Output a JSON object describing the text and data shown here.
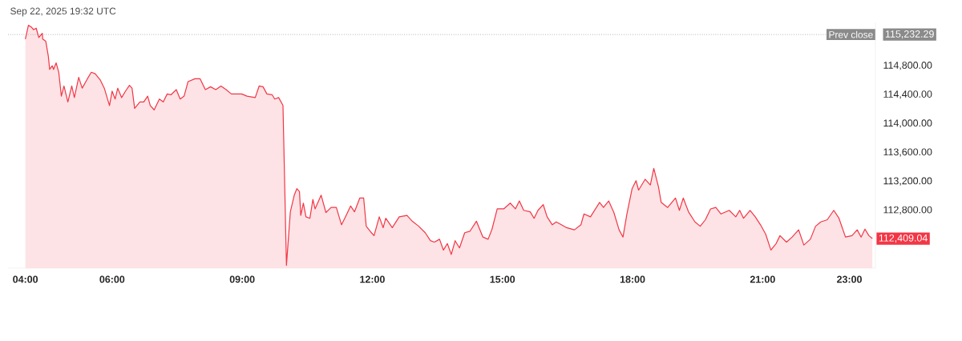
{
  "chart_data": {
    "type": "area",
    "title": "Sep 22, 2025 19:32 UTC",
    "color": "#f23645",
    "x": [
      4.0,
      4.07,
      4.13,
      4.19,
      4.25,
      4.31,
      4.39,
      4.4,
      4.47,
      4.53,
      4.56,
      4.62,
      4.65,
      4.71,
      4.77,
      4.83,
      4.89,
      4.98,
      5.07,
      5.13,
      5.23,
      5.31,
      5.43,
      5.52,
      5.61,
      5.73,
      5.82,
      5.94,
      6.0,
      6.07,
      6.13,
      6.22,
      6.31,
      6.4,
      6.46,
      6.52,
      6.64,
      6.73,
      6.82,
      6.88,
      6.97,
      7.09,
      7.18,
      7.27,
      7.36,
      7.48,
      7.57,
      7.66,
      7.75,
      7.91,
      8.03,
      8.15,
      8.27,
      8.39,
      8.51,
      8.63,
      8.75,
      8.99,
      9.11,
      9.3,
      9.39,
      9.48,
      9.57,
      9.69,
      9.75,
      9.84,
      9.94,
      10.02,
      10.11,
      10.2,
      10.26,
      10.32,
      10.35,
      10.41,
      10.47,
      10.56,
      10.63,
      10.68,
      10.82,
      10.93,
      11.05,
      11.17,
      11.29,
      11.38,
      11.5,
      11.59,
      11.71,
      11.8,
      11.86,
      11.98,
      12.04,
      12.16,
      12.25,
      12.31,
      12.46,
      12.62,
      12.8,
      12.92,
      13.07,
      13.22,
      13.34,
      13.43,
      13.55,
      13.64,
      13.73,
      13.82,
      13.91,
      14.01,
      14.13,
      14.25,
      14.4,
      14.55,
      14.67,
      14.76,
      14.88,
      15.03,
      15.18,
      15.3,
      15.39,
      15.49,
      15.64,
      15.73,
      15.82,
      15.94,
      16.03,
      16.15,
      16.24,
      16.36,
      16.48,
      16.66,
      16.81,
      16.88,
      17.03,
      17.24,
      17.33,
      17.45,
      17.57,
      17.69,
      17.78,
      17.87,
      17.99,
      18.08,
      18.14,
      18.29,
      18.41,
      18.49,
      18.6,
      18.66,
      18.81,
      18.99,
      19.08,
      19.17,
      19.29,
      19.44,
      19.56,
      19.68,
      19.8,
      19.92,
      20.04,
      20.23,
      20.38,
      20.47,
      20.56,
      20.71,
      20.83,
      20.95,
      21.07,
      21.19,
      21.31,
      21.4,
      21.55,
      21.68,
      21.83,
      21.95,
      22.1,
      22.22,
      22.34,
      22.49,
      22.64,
      22.76,
      22.91,
      23.06,
      23.18,
      23.27,
      23.36,
      23.45,
      23.53
    ],
    "values": [
      115170,
      115360,
      115340,
      115300,
      115320,
      115190,
      115250,
      115170,
      115140,
      114930,
      114750,
      114800,
      114750,
      114840,
      114710,
      114380,
      114520,
      114300,
      114520,
      114360,
      114640,
      114490,
      114620,
      114710,
      114690,
      114600,
      114490,
      114250,
      114450,
      114340,
      114490,
      114360,
      114450,
      114530,
      114490,
      114210,
      114300,
      114300,
      114380,
      114250,
      114190,
      114340,
      114300,
      114410,
      114400,
      114470,
      114340,
      114380,
      114580,
      114620,
      114620,
      114470,
      114510,
      114470,
      114520,
      114470,
      114410,
      114410,
      114380,
      114360,
      114520,
      114510,
      114410,
      114400,
      114340,
      114360,
      114250,
      112040,
      112780,
      113010,
      113100,
      113060,
      112730,
      112900,
      112710,
      112690,
      112950,
      112820,
      113010,
      112770,
      112840,
      112840,
      112600,
      112710,
      112860,
      112780,
      112970,
      112970,
      112580,
      112490,
      112450,
      112710,
      112560,
      112690,
      112560,
      112710,
      112730,
      112650,
      112580,
      112490,
      112380,
      112360,
      112400,
      112250,
      112340,
      112190,
      112380,
      112280,
      112490,
      112510,
      112650,
      112430,
      112400,
      112540,
      112820,
      112820,
      112900,
      112820,
      112930,
      112800,
      112780,
      112690,
      112800,
      112880,
      112710,
      112600,
      112640,
      112600,
      112560,
      112530,
      112600,
      112750,
      112710,
      112910,
      112840,
      112930,
      112770,
      112530,
      112430,
      112750,
      113100,
      113210,
      113080,
      113230,
      113150,
      113380,
      113120,
      112910,
      112840,
      112970,
      112800,
      112970,
      112780,
      112640,
      112580,
      112670,
      112820,
      112840,
      112750,
      112800,
      112710,
      112800,
      112690,
      112800,
      112710,
      112600,
      112470,
      112250,
      112340,
      112450,
      112360,
      112430,
      112530,
      112320,
      112400,
      112580,
      112640,
      112670,
      112800,
      112690,
      112430,
      112450,
      112530,
      112430,
      112540,
      112450,
      112409.04
    ],
    "xlim": [
      3.6,
      23.6
    ],
    "ylim": [
      112000,
      115400
    ],
    "xticks": [
      {
        "value": 4,
        "label": "04:00"
      },
      {
        "value": 6,
        "label": "06:00"
      },
      {
        "value": 9,
        "label": "09:00"
      },
      {
        "value": 12,
        "label": "12:00"
      },
      {
        "value": 15,
        "label": "15:00"
      },
      {
        "value": 18,
        "label": "18:00"
      },
      {
        "value": 21,
        "label": "21:00"
      },
      {
        "value": 23,
        "label": "23:00"
      }
    ],
    "yticks": [
      {
        "value": 112800,
        "label": "112,800.00"
      },
      {
        "value": 113200,
        "label": "113,200.00"
      },
      {
        "value": 113600,
        "label": "113,600.00"
      },
      {
        "value": 114000,
        "label": "114,000.00"
      },
      {
        "value": 114400,
        "label": "114,400.00"
      },
      {
        "value": 114800,
        "label": "114,800.00"
      },
      {
        "value": 115232.29,
        "label": "115,232.29"
      }
    ],
    "ref_lines": [
      {
        "axis": "y",
        "value": 115232.29,
        "label": "Prev close",
        "color": "#8a8a8a",
        "line_style": "dotted"
      }
    ],
    "annotations": [
      {
        "text": "112,409.04",
        "x": 23.53,
        "y": 112409.04
      }
    ]
  }
}
